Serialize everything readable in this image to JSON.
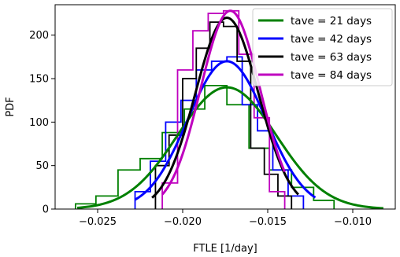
{
  "chart_data": {
    "type": "line",
    "title": "",
    "xlabel": "FTLE [1/day]",
    "ylabel": "PDF",
    "xlim": [
      -0.0275,
      -0.0075
    ],
    "ylim": [
      0,
      235
    ],
    "xticks": [
      -0.025,
      -0.02,
      -0.015,
      -0.01
    ],
    "xtick_labels": [
      "−0.025",
      "−0.020",
      "−0.015",
      "−0.010"
    ],
    "yticks": [
      0,
      50,
      100,
      150,
      200
    ],
    "ytick_labels": [
      "0",
      "50",
      "100",
      "150",
      "200"
    ],
    "grid": false,
    "legend_position": "top-right",
    "series": [
      {
        "name": "tave = 21 days",
        "color": "#008000",
        "histogram": {
          "edges": [
            -0.0263,
            -0.0251,
            -0.0238,
            -0.0225,
            -0.0212,
            -0.0199,
            -0.0187,
            -0.0174,
            -0.0161,
            -0.0149,
            -0.0136,
            -0.0123,
            -0.0111
          ],
          "values": [
            6,
            15,
            45,
            58,
            88,
            115,
            142,
            120,
            70,
            45,
            25,
            10
          ]
        },
        "curve": {
          "mean": -0.0174,
          "sd": 0.0029,
          "peak": 140,
          "x_range": [
            -0.0262,
            -0.0082
          ]
        }
      },
      {
        "name": "tave = 42 days",
        "color": "#0000ff",
        "histogram": {
          "edges": [
            -0.0228,
            -0.0219,
            -0.021,
            -0.0201,
            -0.0192,
            -0.0183,
            -0.0174,
            -0.0165,
            -0.0156,
            -0.0147,
            -0.0138,
            -0.0129
          ],
          "values": [
            20,
            55,
            100,
            125,
            160,
            170,
            175,
            120,
            90,
            45,
            15
          ]
        },
        "curve": {
          "mean": -0.0174,
          "sd": 0.0023,
          "peak": 170,
          "x_range": [
            -0.0228,
            -0.0122
          ]
        }
      },
      {
        "name": "tave = 63 days",
        "color": "#000000",
        "histogram": {
          "edges": [
            -0.0216,
            -0.0208,
            -0.02,
            -0.0192,
            -0.0184,
            -0.0176,
            -0.0168,
            -0.016,
            -0.0152,
            -0.0144,
            -0.0136
          ],
          "values": [
            50,
            85,
            150,
            185,
            215,
            210,
            170,
            70,
            40,
            15
          ]
        },
        "curve": {
          "mean": -0.0174,
          "sd": 0.00185,
          "peak": 220,
          "x_range": [
            -0.0218,
            -0.0132
          ]
        }
      },
      {
        "name": "tave = 84 days",
        "color": "#bf00bf",
        "histogram": {
          "edges": [
            -0.0212,
            -0.0203,
            -0.0194,
            -0.0185,
            -0.0176,
            -0.0167,
            -0.0158,
            -0.0149,
            -0.014
          ],
          "values": [
            30,
            160,
            205,
            225,
            228,
            178,
            105,
            20
          ]
        },
        "curve": {
          "mean": -0.0172,
          "sd": 0.00175,
          "peak": 228,
          "x_range": [
            -0.0212,
            -0.014
          ]
        }
      }
    ]
  }
}
